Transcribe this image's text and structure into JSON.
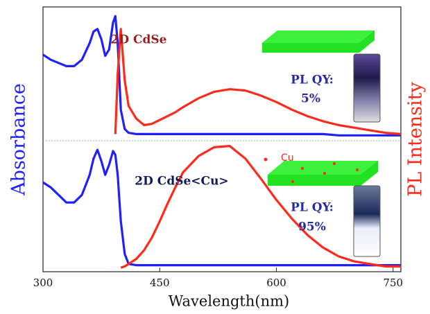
{
  "chart_data": {
    "type": "line",
    "xlabel": "Wavelength(nm)",
    "ylabel": "Absorbance",
    "y2label": "PL Intensity",
    "xlim": [
      300,
      760
    ],
    "xticks": [
      300,
      450,
      600,
      750
    ],
    "panels": [
      {
        "annotations": [
          "2D  CdSe",
          "PL QY:",
          "5%"
        ],
        "ylim": [
          0,
          1
        ],
        "y2lim": [
          0,
          1
        ],
        "x": [
          300,
          310,
          320,
          330,
          340,
          350,
          360,
          365,
          370,
          375,
          380,
          385,
          390,
          393,
          396,
          400,
          405,
          410,
          420,
          430,
          440,
          450,
          460,
          470,
          480,
          500,
          520,
          540,
          560,
          580,
          600,
          620,
          640,
          660,
          680,
          700,
          720,
          740,
          760
        ],
        "series": [
          {
            "color": "#1f1fff",
            "values": [
              0.65,
              0.61,
              0.585,
              0.56,
              0.56,
              0.61,
              0.74,
              0.83,
              0.85,
              0.77,
              0.64,
              0.69,
              0.9,
              0.95,
              0.74,
              0.22,
              0.07,
              0.04,
              0.03,
              0.03,
              0.03,
              0.03,
              0.03,
              0.03,
              0.03,
              0.03,
              0.03,
              0.03,
              0.03,
              0.03,
              0.03,
              0.03,
              0.03,
              0.03,
              0.02,
              0.02,
              0.02,
              0.02,
              0.02
            ]
          },
          {
            "color": "#ff2a1a",
            "axis": "y2",
            "values": [
              null,
              null,
              null,
              null,
              null,
              null,
              null,
              null,
              null,
              null,
              null,
              null,
              null,
              0.03,
              0.5,
              0.85,
              0.45,
              0.25,
              0.15,
              0.1,
              0.11,
              0.14,
              0.17,
              0.2,
              0.24,
              0.31,
              0.36,
              0.38,
              0.37,
              0.33,
              0.28,
              0.22,
              0.17,
              0.13,
              0.1,
              0.08,
              0.06,
              0.04,
              0.03
            ]
          }
        ]
      },
      {
        "annotations": [
          "2D  CdSe<Cu>",
          "Cu",
          "PL QY:",
          "95%"
        ],
        "ylim": [
          0,
          1
        ],
        "y2lim": [
          0,
          1
        ],
        "x": [
          300,
          310,
          320,
          330,
          340,
          350,
          360,
          365,
          370,
          375,
          380,
          385,
          390,
          393,
          396,
          400,
          405,
          410,
          420,
          430,
          440,
          450,
          460,
          470,
          480,
          500,
          520,
          540,
          560,
          580,
          600,
          620,
          640,
          660,
          680,
          700,
          720,
          740,
          760
        ],
        "series": [
          {
            "color": "#1f1fff",
            "values": [
              0.69,
              0.65,
              0.59,
              0.53,
              0.53,
              0.59,
              0.75,
              0.88,
              0.95,
              0.86,
              0.75,
              0.83,
              0.94,
              0.91,
              0.75,
              0.38,
              0.12,
              0.04,
              0.03,
              0.03,
              0.03,
              0.03,
              0.03,
              0.03,
              0.03,
              0.03,
              0.03,
              0.03,
              0.03,
              0.03,
              0.03,
              0.03,
              0.03,
              0.03,
              0.03,
              0.03,
              0.03,
              0.03,
              0.03
            ]
          },
          {
            "color": "#ff2a1a",
            "axis": "y2",
            "values": [
              null,
              null,
              null,
              null,
              null,
              null,
              null,
              null,
              null,
              null,
              null,
              null,
              null,
              null,
              null,
              0.01,
              0.02,
              0.04,
              0.08,
              0.15,
              0.25,
              0.38,
              0.52,
              0.65,
              0.77,
              0.9,
              0.97,
              0.98,
              0.88,
              0.72,
              0.55,
              0.4,
              0.27,
              0.17,
              0.1,
              0.06,
              0.04,
              0.02,
              0.02
            ]
          }
        ]
      }
    ]
  }
}
